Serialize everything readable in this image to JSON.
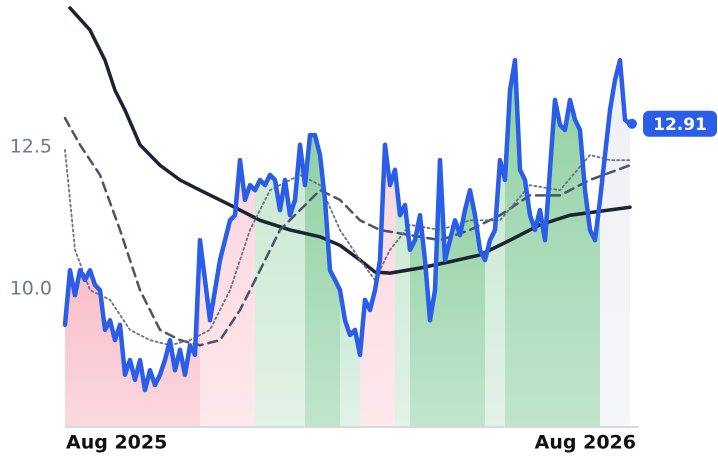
{
  "chart_data": {
    "type": "line",
    "ylim": [
      7.57,
      15.09
    ],
    "yticks": [
      {
        "value": 10,
        "label": "10.0"
      },
      12.5
    ],
    "xlim": [
      0,
      114
    ],
    "xticks": [
      {
        "value": 0,
        "label": "Aug 2025"
      },
      {
        "value": 113,
        "label": "Aug 2026"
      }
    ],
    "series": [
      {
        "color": "#2a5ee8",
        "style": "solid",
        "width": 4.5,
        "values": [
          9.37,
          10.33,
          9.89,
          10.33,
          10.16,
          10.33,
          10.07,
          9.98,
          9.28,
          9.45,
          9.1,
          9.37,
          8.49,
          8.75,
          8.4,
          8.75,
          8.22,
          8.57,
          8.31,
          8.49,
          8.75,
          9.1,
          8.57,
          8.93,
          8.49,
          9.01,
          8.84,
          10.86,
          10.16,
          9.45,
          9.98,
          10.51,
          10.86,
          11.21,
          11.3,
          12.27,
          11.57,
          11.83,
          11.74,
          11.92,
          11.83,
          12.01,
          11.92,
          11.39,
          11.92,
          11.3,
          11.57,
          12.54,
          11.83,
          12.71,
          12.71,
          12.36,
          11.57,
          10.33,
          10.16,
          9.98,
          9.45,
          9.19,
          9.28,
          8.84,
          9.81,
          9.63,
          9.98,
          10.51,
          12.54,
          11.83,
          12.1,
          11.3,
          11.48,
          10.69,
          10.86,
          11.3,
          10.51,
          9.45,
          9.98,
          12.27,
          10.51,
          10.86,
          11.21,
          10.95,
          11.39,
          11.74,
          11.3,
          10.69,
          10.51,
          10.86,
          11.04,
          12.27,
          11.92,
          13.5,
          14.03,
          12.1,
          11.92,
          11.3,
          11.04,
          11.39,
          10.86,
          12.1,
          13.33,
          12.89,
          12.8,
          13.33,
          12.98,
          12.8,
          11.74,
          11.04,
          10.86,
          11.57,
          12.36,
          13.15,
          13.68,
          14.03,
          12.98,
          12.91
        ]
      },
      {
        "color": "#1c2333",
        "style": "solid",
        "width": 3.5,
        "x": [
          1,
          5,
          8,
          10,
          12,
          15,
          19,
          23,
          27,
          33,
          39,
          45,
          51,
          55,
          59,
          62,
          65,
          71,
          77,
          83,
          89,
          95,
          101,
          107,
          113
        ],
        "values": [
          14.95,
          14.56,
          14.03,
          13.5,
          13.15,
          12.54,
          12.18,
          11.92,
          11.74,
          11.48,
          11.21,
          11.04,
          10.92,
          10.77,
          10.51,
          10.3,
          10.28,
          10.37,
          10.48,
          10.6,
          10.86,
          11.13,
          11.3,
          11.37,
          11.44
        ]
      },
      {
        "color": "#4a5568",
        "style": "dashed",
        "width": 2.5,
        "x": [
          0,
          3,
          7,
          11,
          15,
          19,
          23,
          27,
          31,
          35,
          39,
          43,
          47,
          51,
          55,
          59,
          63,
          69,
          75,
          81,
          87,
          93,
          99,
          105,
          113
        ],
        "values": [
          13.01,
          12.54,
          12.01,
          11.04,
          9.98,
          9.28,
          9.1,
          9.01,
          9.1,
          9.63,
          10.33,
          11.04,
          11.39,
          11.74,
          11.57,
          11.21,
          11.04,
          10.95,
          10.86,
          11.04,
          11.3,
          11.65,
          11.65,
          11.92,
          12.18
        ]
      },
      {
        "color": "#6b7280",
        "style": "dotted",
        "width": 1.8,
        "x": [
          0,
          2,
          5,
          9,
          13,
          17,
          21,
          25,
          29,
          33,
          37,
          41,
          47,
          51,
          55,
          59,
          62,
          65,
          69,
          75,
          81,
          87,
          93,
          99,
          105,
          109,
          113
        ],
        "values": [
          12.45,
          10.69,
          9.98,
          9.81,
          9.28,
          9.1,
          9.01,
          9.1,
          9.28,
          9.98,
          11.04,
          11.74,
          12.01,
          11.83,
          11.04,
          10.51,
          10.16,
          10.69,
          11.13,
          11.04,
          11.21,
          11.21,
          11.83,
          11.74,
          12.36,
          12.27,
          12.27
        ]
      }
    ],
    "bands": [
      {
        "start": 0,
        "end": 27,
        "color": "#f8b9c5"
      },
      {
        "start": 27,
        "end": 38,
        "color": "#fcd6de"
      },
      {
        "start": 38,
        "end": 48,
        "color": "#c9e8d2"
      },
      {
        "start": 48,
        "end": 55,
        "color": "#8fd0a2"
      },
      {
        "start": 55,
        "end": 59,
        "color": "#c9e8d2"
      },
      {
        "start": 59,
        "end": 66,
        "color": "#fcd6de"
      },
      {
        "start": 66,
        "end": 69,
        "color": "#c9e8d2"
      },
      {
        "start": 69,
        "end": 84,
        "color": "#8fd0a2"
      },
      {
        "start": 84,
        "end": 88,
        "color": "#c9e8d2"
      },
      {
        "start": 88,
        "end": 107,
        "color": "#8fd0a2"
      },
      {
        "start": 107,
        "end": 113,
        "color": "#eef0f5"
      }
    ]
  }
}
